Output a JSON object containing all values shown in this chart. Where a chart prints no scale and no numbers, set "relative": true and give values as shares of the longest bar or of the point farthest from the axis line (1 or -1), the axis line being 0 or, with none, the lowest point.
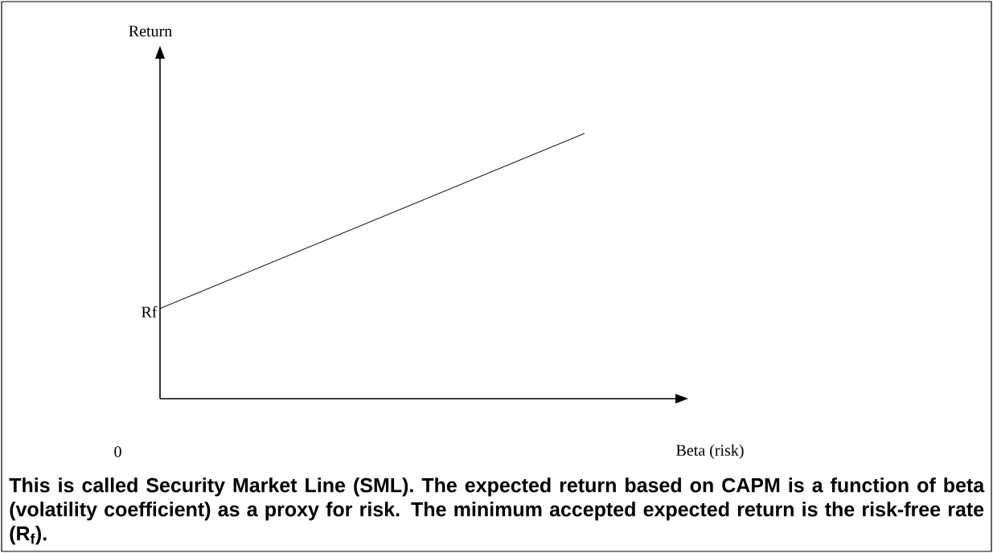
{
  "chart_data": {
    "type": "line",
    "relative": true,
    "xlabel": "Beta (risk)",
    "categories": [
      null,
      null
    ],
    "series": [
      {
        "color": "#000000",
        "values": [
          0.34,
          1
        ]
      }
    ],
    "annotations": [
      "Return",
      "Rf",
      "0",
      "**This is called Security Market Line (SML). The expected return based on CAPM is a function of beta (volatility coefficient) as a proxy for risk. The minimum accepted expected return is the risk-free rate (R$_{f}$).**"
    ]
  }
}
